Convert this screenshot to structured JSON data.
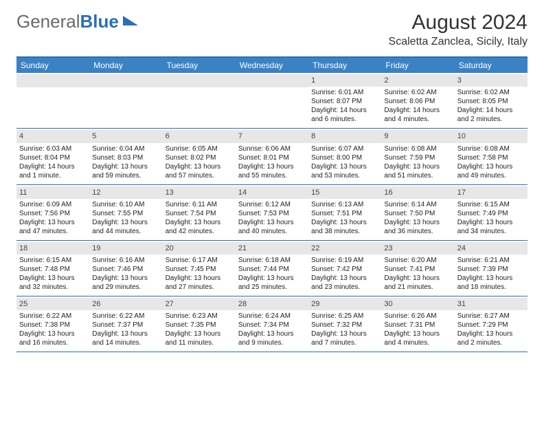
{
  "logo": {
    "text1": "General",
    "text2": "Blue"
  },
  "title": "August 2024",
  "location": "Scaletta Zanclea, Sicily, Italy",
  "header_bar_color": "#3b82c4",
  "border_color": "#2a6fb5",
  "daynum_bg": "#e7e7e7",
  "weekdays": [
    "Sunday",
    "Monday",
    "Tuesday",
    "Wednesday",
    "Thursday",
    "Friday",
    "Saturday"
  ],
  "weeks": [
    [
      null,
      null,
      null,
      null,
      {
        "n": "1",
        "sr": "6:01 AM",
        "ss": "8:07 PM",
        "dl": "14 hours and 6 minutes."
      },
      {
        "n": "2",
        "sr": "6:02 AM",
        "ss": "8:06 PM",
        "dl": "14 hours and 4 minutes."
      },
      {
        "n": "3",
        "sr": "6:02 AM",
        "ss": "8:05 PM",
        "dl": "14 hours and 2 minutes."
      }
    ],
    [
      {
        "n": "4",
        "sr": "6:03 AM",
        "ss": "8:04 PM",
        "dl": "14 hours and 1 minute."
      },
      {
        "n": "5",
        "sr": "6:04 AM",
        "ss": "8:03 PM",
        "dl": "13 hours and 59 minutes."
      },
      {
        "n": "6",
        "sr": "6:05 AM",
        "ss": "8:02 PM",
        "dl": "13 hours and 57 minutes."
      },
      {
        "n": "7",
        "sr": "6:06 AM",
        "ss": "8:01 PM",
        "dl": "13 hours and 55 minutes."
      },
      {
        "n": "8",
        "sr": "6:07 AM",
        "ss": "8:00 PM",
        "dl": "13 hours and 53 minutes."
      },
      {
        "n": "9",
        "sr": "6:08 AM",
        "ss": "7:59 PM",
        "dl": "13 hours and 51 minutes."
      },
      {
        "n": "10",
        "sr": "6:08 AM",
        "ss": "7:58 PM",
        "dl": "13 hours and 49 minutes."
      }
    ],
    [
      {
        "n": "11",
        "sr": "6:09 AM",
        "ss": "7:56 PM",
        "dl": "13 hours and 47 minutes."
      },
      {
        "n": "12",
        "sr": "6:10 AM",
        "ss": "7:55 PM",
        "dl": "13 hours and 44 minutes."
      },
      {
        "n": "13",
        "sr": "6:11 AM",
        "ss": "7:54 PM",
        "dl": "13 hours and 42 minutes."
      },
      {
        "n": "14",
        "sr": "6:12 AM",
        "ss": "7:53 PM",
        "dl": "13 hours and 40 minutes."
      },
      {
        "n": "15",
        "sr": "6:13 AM",
        "ss": "7:51 PM",
        "dl": "13 hours and 38 minutes."
      },
      {
        "n": "16",
        "sr": "6:14 AM",
        "ss": "7:50 PM",
        "dl": "13 hours and 36 minutes."
      },
      {
        "n": "17",
        "sr": "6:15 AM",
        "ss": "7:49 PM",
        "dl": "13 hours and 34 minutes."
      }
    ],
    [
      {
        "n": "18",
        "sr": "6:15 AM",
        "ss": "7:48 PM",
        "dl": "13 hours and 32 minutes."
      },
      {
        "n": "19",
        "sr": "6:16 AM",
        "ss": "7:46 PM",
        "dl": "13 hours and 29 minutes."
      },
      {
        "n": "20",
        "sr": "6:17 AM",
        "ss": "7:45 PM",
        "dl": "13 hours and 27 minutes."
      },
      {
        "n": "21",
        "sr": "6:18 AM",
        "ss": "7:44 PM",
        "dl": "13 hours and 25 minutes."
      },
      {
        "n": "22",
        "sr": "6:19 AM",
        "ss": "7:42 PM",
        "dl": "13 hours and 23 minutes."
      },
      {
        "n": "23",
        "sr": "6:20 AM",
        "ss": "7:41 PM",
        "dl": "13 hours and 21 minutes."
      },
      {
        "n": "24",
        "sr": "6:21 AM",
        "ss": "7:39 PM",
        "dl": "13 hours and 18 minutes."
      }
    ],
    [
      {
        "n": "25",
        "sr": "6:22 AM",
        "ss": "7:38 PM",
        "dl": "13 hours and 16 minutes."
      },
      {
        "n": "26",
        "sr": "6:22 AM",
        "ss": "7:37 PM",
        "dl": "13 hours and 14 minutes."
      },
      {
        "n": "27",
        "sr": "6:23 AM",
        "ss": "7:35 PM",
        "dl": "13 hours and 11 minutes."
      },
      {
        "n": "28",
        "sr": "6:24 AM",
        "ss": "7:34 PM",
        "dl": "13 hours and 9 minutes."
      },
      {
        "n": "29",
        "sr": "6:25 AM",
        "ss": "7:32 PM",
        "dl": "13 hours and 7 minutes."
      },
      {
        "n": "30",
        "sr": "6:26 AM",
        "ss": "7:31 PM",
        "dl": "13 hours and 4 minutes."
      },
      {
        "n": "31",
        "sr": "6:27 AM",
        "ss": "7:29 PM",
        "dl": "13 hours and 2 minutes."
      }
    ]
  ],
  "labels": {
    "sunrise": "Sunrise:",
    "sunset": "Sunset:",
    "daylight": "Daylight:"
  }
}
